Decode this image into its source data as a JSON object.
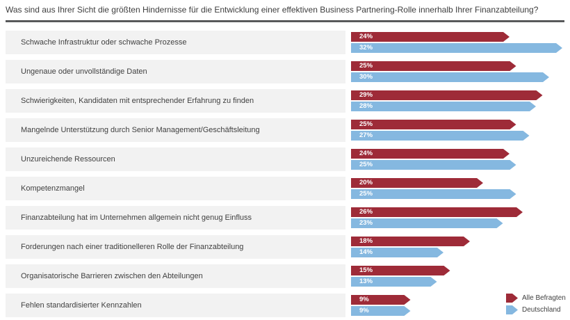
{
  "title": "Was sind aus Ihrer Sicht die größten Hindernisse für die Entwicklung einer effektiven Business Partnering-Rolle innerhalb Ihrer Finanzabteilung?",
  "colors": {
    "all_respondents": "#9e2b38",
    "germany": "#85b8e0",
    "row_band": "#f2f2f2",
    "title_rule": "#58595b"
  },
  "legend": {
    "items": [
      {
        "label": "Alle Befragten",
        "color_key": "all_respondents"
      },
      {
        "label": "Deutschland",
        "color_key": "germany"
      }
    ],
    "position": "bottom-right"
  },
  "chart_data": {
    "type": "bar",
    "orientation": "horizontal",
    "unit": "%",
    "value_labels": "inside-start",
    "grid": false,
    "xlim": [
      0,
      32
    ],
    "categories": [
      "Schwache Infrastruktur oder schwache Prozesse",
      "Ungenaue oder unvollständige Daten",
      "Schwierigkeiten, Kandidaten mit entsprechender Erfahrung zu finden",
      "Mangelnde Unterstützung durch Senior Management/Geschäftsleitung",
      "Unzureichende Ressourcen",
      "Kompetenzmangel",
      "Finanzabteilung hat im Unternehmen allgemein nicht genug Einfluss",
      "Forderungen nach einer traditionelleren Rolle der Finanzabteilung",
      "Organisatorische Barrieren zwischen den Abteilungen",
      "Fehlen standardisierter Kennzahlen"
    ],
    "series": [
      {
        "name": "Alle Befragten",
        "color_key": "all_respondents",
        "values": [
          24,
          25,
          29,
          25,
          24,
          20,
          26,
          18,
          15,
          9
        ]
      },
      {
        "name": "Deutschland",
        "color_key": "germany",
        "values": [
          32,
          30,
          28,
          27,
          25,
          25,
          23,
          14,
          13,
          9
        ]
      }
    ]
  }
}
